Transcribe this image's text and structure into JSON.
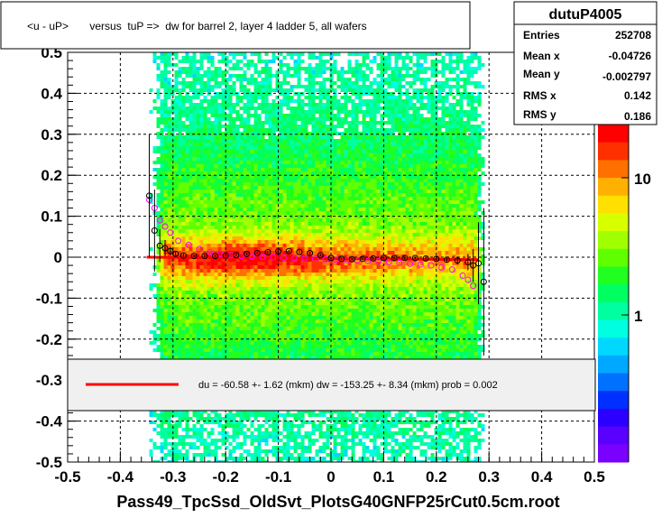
{
  "chart_data": {
    "type": "heatmap",
    "title": "<u - uP>       versus  tuP =>  dw for barrel 2, layer 4 ladder 5, all wafers",
    "xlabel": "Pass49_TpcSsd_OldSvt_PlotsG40GNFP25rCut0.5cm.root",
    "ylabel": "",
    "xlim": [
      -0.5,
      0.5
    ],
    "ylim": [
      -0.5,
      0.5
    ],
    "x_ticks": [
      "-0.5",
      "-0.4",
      "-0.3",
      "-0.2",
      "-0.1",
      "0",
      "0.1",
      "0.2",
      "0.3",
      "0.4",
      "0.5"
    ],
    "y_ticks": [
      "-0.5",
      "-0.4",
      "-0.3",
      "-0.2",
      "-0.1",
      "0",
      "0.1",
      "0.2",
      "0.3",
      "0.4",
      "0.5"
    ],
    "z_scale": "log",
    "z_ticks": [
      "1",
      "10"
    ],
    "grid": true,
    "stats": {
      "name": "dutuP4005",
      "rows": [
        {
          "label": "Entries",
          "value": "252708"
        },
        {
          "label": "Mean x",
          "value": "-0.04726"
        },
        {
          "label": "Mean y",
          "value": "-0.002797"
        },
        {
          "label": "RMS x",
          "value": "0.142"
        },
        {
          "label": "RMS y",
          "value": "0.186"
        }
      ]
    },
    "legend": {
      "placement": "bottom-center",
      "text": "du =  -60.58 +-  1.62 (mkm) dw = -153.25 +-  8.34 (mkm) prob = 0.002",
      "line_color": "#ff0000"
    },
    "fit_line": {
      "x": [
        -0.35,
        0.28
      ],
      "y": [
        0.0,
        -0.006
      ],
      "color": "#ff0000"
    },
    "profile_black": {
      "x": [
        -0.345,
        -0.335,
        -0.325,
        -0.315,
        -0.305,
        -0.295,
        -0.28,
        -0.26,
        -0.24,
        -0.22,
        -0.2,
        -0.18,
        -0.16,
        -0.14,
        -0.12,
        -0.1,
        -0.08,
        -0.06,
        -0.04,
        -0.02,
        0.0,
        0.02,
        0.04,
        0.06,
        0.08,
        0.1,
        0.12,
        0.14,
        0.16,
        0.18,
        0.2,
        0.22,
        0.24,
        0.26,
        0.27,
        0.28,
        0.29
      ],
      "y": [
        0.15,
        0.065,
        0.028,
        0.022,
        0.015,
        0.008,
        0.004,
        0.003,
        0.003,
        0.003,
        0.004,
        0.005,
        0.008,
        0.01,
        0.012,
        0.014,
        0.015,
        0.013,
        0.01,
        0.005,
        -0.002,
        -0.004,
        -0.005,
        -0.004,
        -0.003,
        -0.002,
        -0.002,
        -0.002,
        -0.002,
        -0.003,
        -0.004,
        -0.006,
        -0.008,
        -0.012,
        -0.02,
        -0.015,
        -0.06
      ],
      "err": [
        0.15,
        0.1,
        0.04,
        0.02,
        0.01,
        0.005,
        0.004,
        0.003,
        0.003,
        0.003,
        0.003,
        0.003,
        0.003,
        0.003,
        0.003,
        0.003,
        0.003,
        0.003,
        0.003,
        0.003,
        0.003,
        0.003,
        0.003,
        0.003,
        0.003,
        0.003,
        0.003,
        0.003,
        0.003,
        0.003,
        0.004,
        0.005,
        0.01,
        0.02,
        0.04,
        0.1,
        0.18
      ],
      "color": "#000000"
    },
    "profile_magenta": {
      "x": [
        -0.345,
        -0.335,
        -0.325,
        -0.315,
        -0.305,
        -0.29,
        -0.27,
        -0.25,
        -0.23,
        -0.21,
        -0.19,
        -0.17,
        -0.15,
        -0.13,
        -0.11,
        -0.09,
        -0.07,
        -0.05,
        -0.03,
        -0.01,
        0.01,
        0.03,
        0.05,
        0.07,
        0.09,
        0.11,
        0.13,
        0.15,
        0.17,
        0.19,
        0.21,
        0.23,
        0.25,
        0.26,
        0.27
      ],
      "y": [
        0.14,
        0.12,
        0.09,
        0.075,
        0.06,
        0.04,
        0.03,
        0.02,
        0.012,
        0.008,
        0.005,
        0.003,
        0.002,
        0.001,
        0.0,
        -0.001,
        -0.002,
        -0.003,
        -0.004,
        -0.005,
        -0.006,
        -0.007,
        -0.008,
        -0.009,
        -0.01,
        -0.012,
        -0.014,
        -0.016,
        -0.018,
        -0.02,
        -0.025,
        -0.03,
        -0.045,
        -0.055,
        -0.07
      ],
      "color": "#ff00ff"
    }
  }
}
